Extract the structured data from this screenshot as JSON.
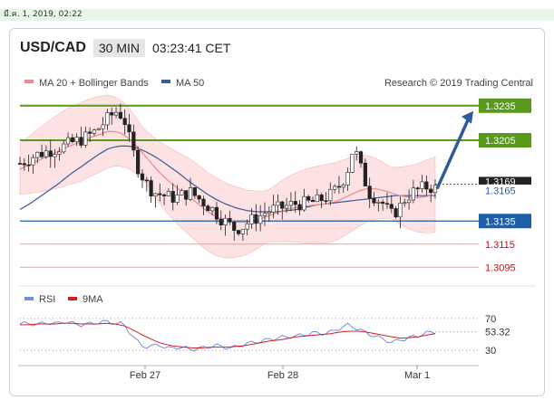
{
  "timestamp": "มี.ค. 1, 2019, 02:22",
  "header": {
    "symbol": "USD/CAD",
    "timeframe": "30 MIN",
    "time": "03:23:41 CET"
  },
  "legend": {
    "ma20": "MA 20 + Bollinger Bands",
    "ma50": "MA 50",
    "credit": "Research © 2019 Trading Central"
  },
  "rsi_legend": {
    "rsi": "RSI",
    "ma": "9MA"
  },
  "colors": {
    "resistance": "#5a9a1a",
    "support_blue": "#1f5ea8",
    "support_red": "#f29a9a",
    "ma20": "#f08a8a",
    "ma50": "#3a5a9a",
    "band": "#fbd5d5",
    "arrow": "#2e5c9a",
    "rsi": "#6f8fe0",
    "rsi_ma": "#d62020"
  },
  "chart_data": [
    {
      "type": "candlestick",
      "title": "USD/CAD 30 MIN",
      "x_ticks": [
        "Feb 27",
        "Feb 28",
        "Mar 1"
      ],
      "ylim": [
        1.3085,
        1.3245
      ],
      "last_price": "1.3165",
      "last_price_partial": "1.3169",
      "levels": [
        {
          "value": 1.3235,
          "label": "1.3235",
          "kind": "resistance"
        },
        {
          "value": 1.3205,
          "label": "1.3205",
          "kind": "resistance"
        },
        {
          "value": 1.3135,
          "label": "1.3135",
          "kind": "support"
        },
        {
          "value": 1.3115,
          "label": "1.3115",
          "kind": "support"
        },
        {
          "value": 1.3095,
          "label": "1.3095",
          "kind": "support"
        }
      ],
      "trend_arrow": {
        "from": 1.3163,
        "to": 1.3235
      },
      "close_path": [
        1.3185,
        1.3188,
        1.3192,
        1.3194,
        1.3196,
        1.3198,
        1.32,
        1.3203,
        1.3205,
        1.3208,
        1.3212,
        1.3218,
        1.3225,
        1.323,
        1.3225,
        1.32,
        1.318,
        1.3168,
        1.316,
        1.3158,
        1.3156,
        1.3155,
        1.3158,
        1.316,
        1.3155,
        1.315,
        1.3145,
        1.3138,
        1.3133,
        1.3128,
        1.313,
        1.3135,
        1.3138,
        1.3142,
        1.3145,
        1.3146,
        1.3148,
        1.315,
        1.315,
        1.3151,
        1.3152,
        1.3155,
        1.3158,
        1.3165,
        1.3175,
        1.32,
        1.318,
        1.316,
        1.3155,
        1.315,
        1.314,
        1.3145,
        1.3155,
        1.316,
        1.3163,
        1.3165,
        1.3163
      ],
      "ma20": [
        1.318,
        1.3184,
        1.3188,
        1.3192,
        1.3196,
        1.32,
        1.3203,
        1.3207,
        1.321,
        1.3213,
        1.3212,
        1.3207,
        1.3198,
        1.3188,
        1.3178,
        1.317,
        1.3163,
        1.3157,
        1.315,
        1.3143,
        1.3138,
        1.3135,
        1.3134,
        1.3134,
        1.3136,
        1.3139,
        1.3142,
        1.3145,
        1.3147,
        1.3148,
        1.3149,
        1.315,
        1.3152,
        1.3156,
        1.316,
        1.3163,
        1.3163,
        1.3161,
        1.3158,
        1.3156,
        1.3155,
        1.3156,
        1.3158
      ],
      "ma50": [
        1.3145,
        1.315,
        1.3156,
        1.3162,
        1.3168,
        1.3175,
        1.3181,
        1.3187,
        1.3193,
        1.3198,
        1.32,
        1.32,
        1.3198,
        1.3194,
        1.3189,
        1.3183,
        1.3177,
        1.317,
        1.3164,
        1.3158,
        1.3153,
        1.3149,
        1.3146,
        1.3144,
        1.3143,
        1.3143,
        1.3143,
        1.3144,
        1.3145,
        1.3147,
        1.3149,
        1.315,
        1.3151,
        1.3152,
        1.3153,
        1.3154,
        1.3155,
        1.3156,
        1.3157,
        1.3157,
        1.3157,
        1.3157,
        1.3157
      ]
    },
    {
      "type": "line",
      "title": "RSI",
      "y_ticks": [
        "70",
        "30"
      ],
      "ylim": [
        20,
        80
      ],
      "current_label": "53.32",
      "series": [
        {
          "name": "RSI",
          "values": [
            63,
            64,
            62,
            65,
            63,
            66,
            64,
            62,
            63,
            65,
            66,
            64,
            63,
            48,
            36,
            34,
            38,
            32,
            34,
            33,
            31,
            33,
            35,
            36,
            33,
            34,
            38,
            40,
            42,
            44,
            46,
            47,
            48,
            50,
            52,
            51,
            53,
            58,
            62,
            57,
            52,
            48,
            44,
            40,
            43,
            46,
            48,
            52,
            53
          ]
        },
        {
          "name": "9MA",
          "values": [
            62,
            62,
            63,
            63,
            63,
            64,
            64,
            63,
            63,
            63,
            64,
            63,
            61,
            56,
            50,
            45,
            40,
            37,
            35,
            34,
            33,
            33,
            34,
            34,
            34,
            35,
            36,
            38,
            40,
            42,
            43,
            45,
            47,
            48,
            49,
            50,
            51,
            53,
            54,
            54,
            53,
            51,
            49,
            47,
            45,
            46,
            47,
            49,
            51
          ]
        }
      ]
    }
  ]
}
